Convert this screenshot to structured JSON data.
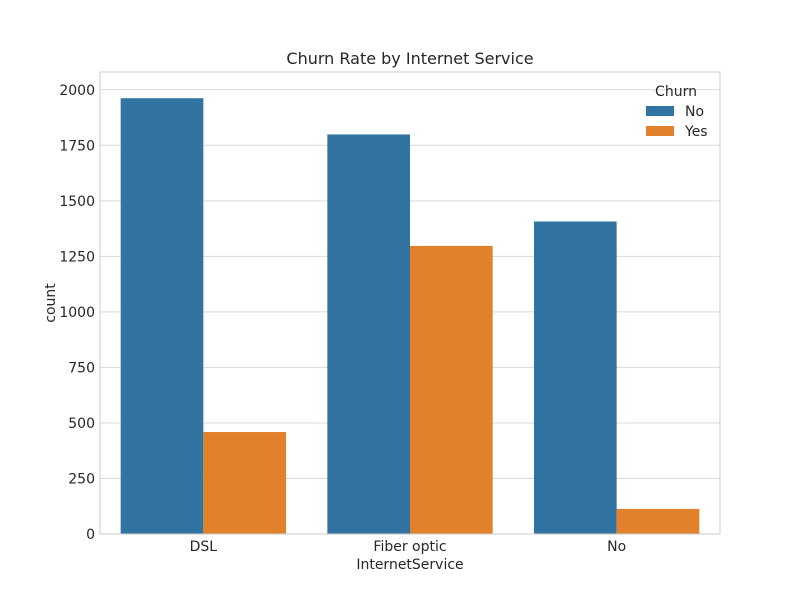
{
  "chart_data": {
    "type": "bar",
    "title": "Churn Rate by Internet Service",
    "xlabel": "InternetService",
    "ylabel": "count",
    "categories": [
      "DSL",
      "Fiber optic",
      "No"
    ],
    "series": [
      {
        "name": "No",
        "values": [
          1962,
          1799,
          1407
        ],
        "color": "#3274a1"
      },
      {
        "name": "Yes",
        "values": [
          459,
          1297,
          113
        ],
        "color": "#e1812c"
      }
    ],
    "ylim": [
      0,
      2080
    ],
    "yticks": [
      0,
      250,
      500,
      750,
      1000,
      1250,
      1500,
      1750,
      2000
    ],
    "grid": true,
    "legend": {
      "title": "Churn",
      "placement": "top-right"
    }
  }
}
